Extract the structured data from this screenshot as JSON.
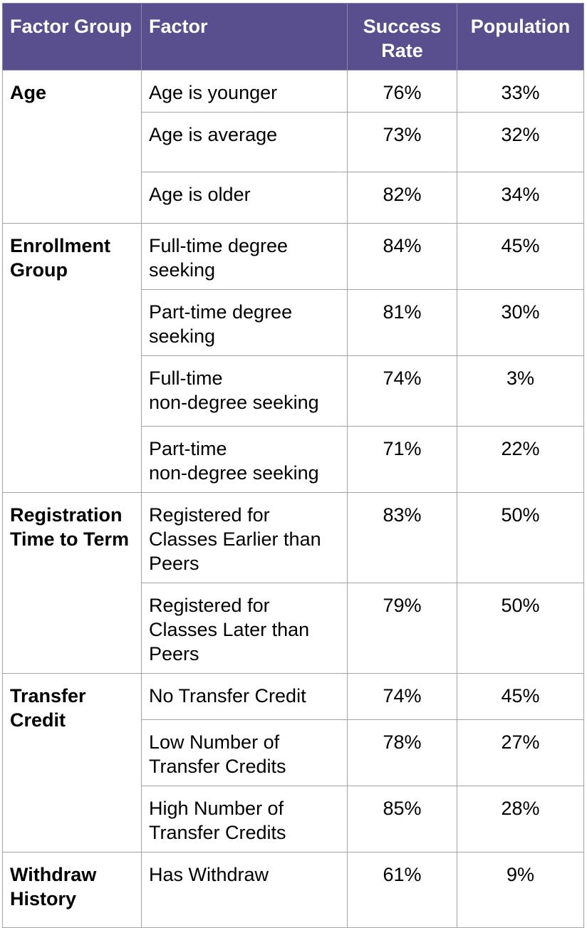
{
  "header": {
    "factor_group": "Factor Group",
    "factor": "Factor",
    "success_rate": "Success Rate",
    "population": "Population"
  },
  "groups": [
    {
      "name": "Age",
      "rows": [
        {
          "factor": "Age is younger",
          "success_rate": "76%",
          "population": "33%"
        },
        {
          "factor": "Age is average",
          "success_rate": "73%",
          "population": "32%"
        },
        {
          "factor": "Age is older",
          "success_rate": "82%",
          "population": "34%"
        }
      ]
    },
    {
      "name": "Enrollment Group",
      "rows": [
        {
          "factor": "Full-time degree seeking",
          "success_rate": "84%",
          "population": "45%"
        },
        {
          "factor": "Part-time degree seeking",
          "success_rate": "81%",
          "population": "30%"
        },
        {
          "factor": "Full-time\nnon-degree seeking",
          "success_rate": "74%",
          "population": "3%"
        },
        {
          "factor": "Part-time\nnon-degree seeking",
          "success_rate": "71%",
          "population": "22%"
        }
      ]
    },
    {
      "name": "Registration Time to Term",
      "rows": [
        {
          "factor": "Registered for Classes Earlier than Peers",
          "success_rate": "83%",
          "population": "50%"
        },
        {
          "factor": "Registered for Classes Later than Peers",
          "success_rate": "79%",
          "population": "50%"
        }
      ]
    },
    {
      "name": "Transfer Credit",
      "rows": [
        {
          "factor": "No Transfer Credit",
          "success_rate": "74%",
          "population": "45%"
        },
        {
          "factor": "Low Number of Transfer Credits",
          "success_rate": "78%",
          "population": "27%"
        },
        {
          "factor": "High Number of Transfer Credits",
          "success_rate": "85%",
          "population": "28%"
        }
      ]
    },
    {
      "name": "Withdraw History",
      "rows": [
        {
          "factor": "Has Withdraw",
          "success_rate": "61%",
          "population": "9%"
        }
      ]
    }
  ]
}
